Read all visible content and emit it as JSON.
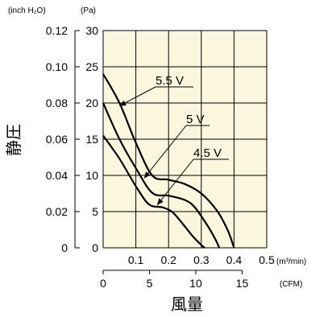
{
  "colors": {
    "plot_bg": "#fbf7df",
    "grid": "#000000",
    "curve": "#000000"
  },
  "chart_data": {
    "type": "line",
    "grid": true,
    "units": {
      "left_outer": "(inch H₂O)",
      "left_inner": "(Pa)",
      "x_primary": "(m³/min)",
      "x_secondary": "(CFM)"
    },
    "ylabel": "静圧",
    "xlabel": "風量",
    "xlim": [
      0,
      0.5
    ],
    "ylim": [
      0,
      30
    ],
    "x_ticks": [
      "",
      "0.1",
      "0.2",
      "0.3",
      "0.4",
      "0.5"
    ],
    "y_ticks_pa": [
      "0",
      "5",
      "10",
      "15",
      "20",
      "25",
      "30"
    ],
    "y_ticks_inch": [
      "0",
      "0.02",
      "0.04",
      "0.06",
      "0.08",
      "0.10",
      "0.12"
    ],
    "cfm_ticks": [
      {
        "label": "0",
        "value": 0
      },
      {
        "label": "5",
        "value": 5
      },
      {
        "label": "10",
        "value": 10
      },
      {
        "label": "15",
        "value": 15
      }
    ],
    "cfm_per_m3min": 35.315,
    "series": [
      {
        "name": "5.5 V",
        "x": [
          0,
          0.05,
          0.1,
          0.15,
          0.2,
          0.25,
          0.3,
          0.35,
          0.38,
          0.395,
          0.4
        ],
        "y": [
          24,
          20,
          14.5,
          10,
          9.4,
          8.8,
          7.5,
          5,
          2.5,
          0.7,
          0
        ]
      },
      {
        "name": "5 V",
        "x": [
          0,
          0.05,
          0.1,
          0.15,
          0.2,
          0.25,
          0.28,
          0.32,
          0.345,
          0.355
        ],
        "y": [
          20,
          15,
          11,
          7.6,
          7.2,
          6.6,
          5.6,
          3,
          1,
          0
        ]
      },
      {
        "name": "4.5 V",
        "x": [
          0,
          0.05,
          0.1,
          0.14,
          0.18,
          0.21,
          0.24,
          0.27,
          0.295,
          0.31
        ],
        "y": [
          15.5,
          12.3,
          8.5,
          6,
          5.6,
          5,
          3.5,
          1.8,
          0.6,
          0
        ]
      }
    ]
  }
}
